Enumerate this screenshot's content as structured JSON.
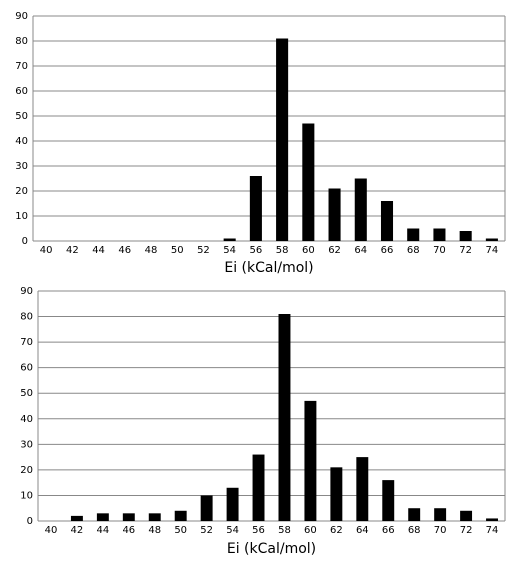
{
  "chart_data": [
    {
      "type": "bar",
      "x_label": "Ei (kCal/mol)",
      "categories": [
        "40",
        "42",
        "44",
        "46",
        "48",
        "50",
        "52",
        "54",
        "56",
        "58",
        "60",
        "62",
        "64",
        "66",
        "68",
        "70",
        "72",
        "74"
      ],
      "values": [
        0,
        0,
        0,
        0,
        0,
        0,
        0,
        1,
        26,
        81,
        47,
        21,
        25,
        16,
        5,
        5,
        4,
        1
      ],
      "color": "#000000",
      "ylim": [
        0,
        90
      ],
      "yticks": [
        0,
        10,
        20,
        30,
        40,
        50,
        60,
        70,
        80,
        90
      ],
      "grid": true
    },
    {
      "type": "bar",
      "x_label": "Ei (kCal/mol)",
      "categories": [
        "40",
        "42",
        "44",
        "46",
        "48",
        "50",
        "52",
        "54",
        "56",
        "58",
        "60",
        "62",
        "64",
        "66",
        "68",
        "70",
        "72",
        "74"
      ],
      "values": [
        0,
        2,
        3,
        3,
        3,
        4,
        10,
        13,
        26,
        81,
        47,
        21,
        25,
        16,
        5,
        5,
        4,
        1
      ],
      "color": "#000000",
      "ylim": [
        0,
        90
      ],
      "yticks": [
        0,
        10,
        20,
        30,
        40,
        50,
        60,
        70,
        80,
        90
      ],
      "grid": true
    }
  ]
}
